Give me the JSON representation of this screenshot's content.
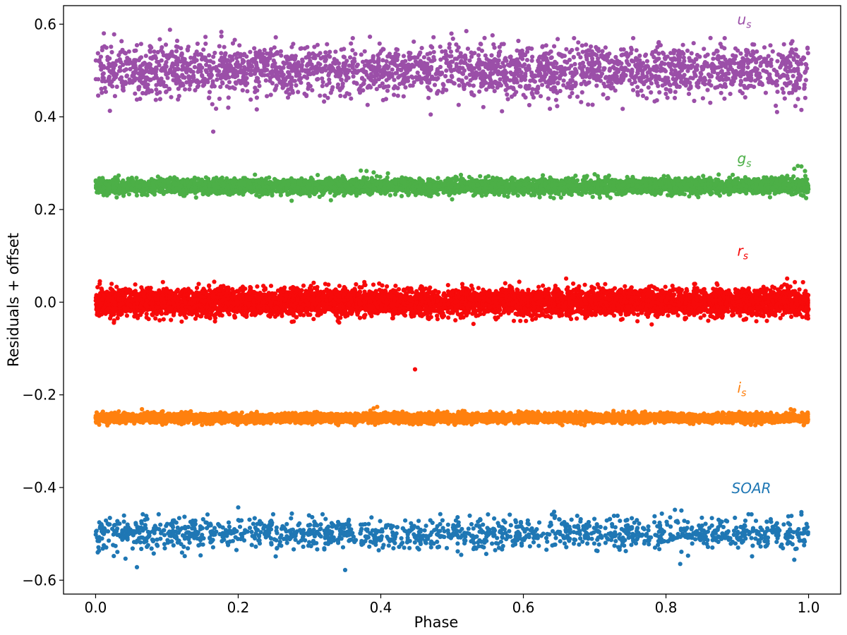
{
  "chart_data": {
    "type": "scatter",
    "title": "",
    "xlabel": "Phase",
    "ylabel": "Residuals + offset",
    "xlim": [
      -0.045,
      1.045
    ],
    "ylim": [
      -0.63,
      0.64
    ],
    "xticks": [
      0.0,
      0.2,
      0.4,
      0.6,
      0.8,
      1.0
    ],
    "xtick_labels": [
      "0.0",
      "0.2",
      "0.4",
      "0.6",
      "0.8",
      "1.0"
    ],
    "yticks": [
      -0.6,
      -0.4,
      -0.2,
      0.0,
      0.2,
      0.4,
      0.6
    ],
    "ytick_labels": [
      "−0.6",
      "−0.4",
      "−0.2",
      "0.0",
      "0.2",
      "0.4",
      "0.6"
    ],
    "grid": false,
    "legend": "none",
    "series": [
      {
        "label_main": "u",
        "label_sub": "s",
        "label_pos": [
          0.9,
          0.6
        ],
        "color": "#9b4fa8",
        "offset": 0.5,
        "scatter_sigma": 0.028,
        "points_per_unit_phase": 2600,
        "outliers": [
          {
            "x": 0.165,
            "y": 0.368
          },
          {
            "x": 0.026,
            "y": 0.578
          },
          {
            "x": 0.52,
            "y": 0.585
          },
          {
            "x": 0.47,
            "y": 0.405
          },
          {
            "x": 0.57,
            "y": 0.412
          },
          {
            "x": 0.99,
            "y": 0.415
          },
          {
            "x": 0.02,
            "y": 0.413
          }
        ]
      },
      {
        "label_main": "g",
        "label_sub": "s",
        "label_pos": [
          0.9,
          0.3
        ],
        "color": "#4caf47",
        "offset": 0.25,
        "scatter_sigma": 0.008,
        "points_per_unit_phase": 5200,
        "outliers": [
          {
            "x": 0.372,
            "y": 0.284
          },
          {
            "x": 0.38,
            "y": 0.283
          },
          {
            "x": 0.39,
            "y": 0.28
          },
          {
            "x": 0.41,
            "y": 0.278
          },
          {
            "x": 0.98,
            "y": 0.288
          },
          {
            "x": 0.985,
            "y": 0.294
          },
          {
            "x": 0.99,
            "y": 0.293
          },
          {
            "x": 0.995,
            "y": 0.283
          },
          {
            "x": 0.7,
            "y": 0.276
          },
          {
            "x": 0.33,
            "y": 0.22
          },
          {
            "x": 0.275,
            "y": 0.219
          },
          {
            "x": 0.5,
            "y": 0.222
          }
        ]
      },
      {
        "label_main": "r",
        "label_sub": "s",
        "label_pos": [
          0.9,
          0.1
        ],
        "color": "#f70a0a",
        "offset": 0.0,
        "scatter_sigma": 0.014,
        "points_per_unit_phase": 7000,
        "outliers": [
          {
            "x": 0.448,
            "y": -0.145
          },
          {
            "x": 0.97,
            "y": 0.051
          },
          {
            "x": 0.66,
            "y": 0.051
          },
          {
            "x": 0.53,
            "y": -0.047
          },
          {
            "x": 0.78,
            "y": -0.048
          },
          {
            "x": 0.006,
            "y": 0.045
          }
        ]
      },
      {
        "label_main": "i",
        "label_sub": "s",
        "label_pos": [
          0.9,
          -0.195
        ],
        "color": "#ff800e",
        "offset": -0.25,
        "scatter_sigma": 0.005,
        "points_per_unit_phase": 5200,
        "outliers": [
          {
            "x": 0.395,
            "y": -0.226
          },
          {
            "x": 0.39,
            "y": -0.229
          },
          {
            "x": 0.065,
            "y": -0.231
          },
          {
            "x": 0.975,
            "y": -0.231
          },
          {
            "x": 0.98,
            "y": -0.233
          }
        ]
      },
      {
        "label_main": "SOAR",
        "label_sub": "",
        "label_pos": [
          0.892,
          -0.412
        ],
        "color": "#1f77b4",
        "offset": -0.5,
        "scatter_sigma": 0.017,
        "points_per_unit_phase": 1400,
        "outliers": [
          {
            "x": 0.2,
            "y": -0.443
          },
          {
            "x": 0.058,
            "y": -0.572
          },
          {
            "x": 0.35,
            "y": -0.578
          },
          {
            "x": 0.99,
            "y": -0.453
          },
          {
            "x": 0.92,
            "y": -0.458
          },
          {
            "x": 0.125,
            "y": -0.548
          },
          {
            "x": 0.82,
            "y": -0.565
          },
          {
            "x": 0.98,
            "y": -0.556
          }
        ]
      }
    ]
  }
}
